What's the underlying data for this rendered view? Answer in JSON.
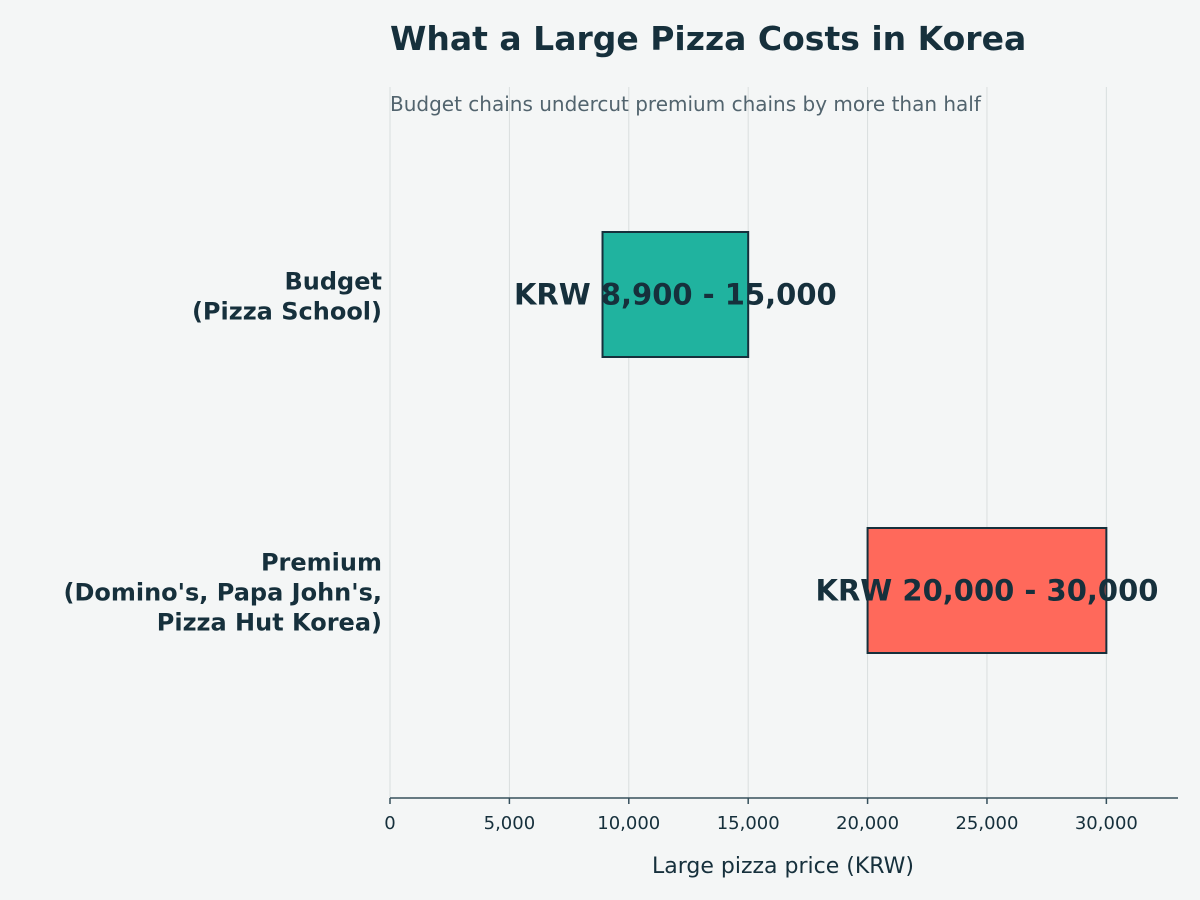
{
  "chart_data": {
    "type": "bar",
    "orientation": "horizontal",
    "subtype": "range",
    "title": "What a Large Pizza Costs in Korea",
    "subtitle": "Budget chains undercut premium chains by more than half",
    "xlabel": "Large pizza price (KRW)",
    "ylabel": "",
    "xlim": [
      0,
      33000
    ],
    "x_ticks": [
      0,
      5000,
      10000,
      15000,
      20000,
      25000,
      30000
    ],
    "x_tick_labels": [
      "0",
      "5,000",
      "10,000",
      "15,000",
      "20,000",
      "25,000",
      "30,000"
    ],
    "grid": "vertical",
    "legend": "none",
    "categories": [
      [
        "Budget",
        "(Pizza School)"
      ],
      [
        "Premium",
        "(Domino's, Papa John's,",
        "Pizza Hut Korea)"
      ]
    ],
    "ranges": [
      {
        "low": 8900,
        "high": 15000,
        "label": "KRW 8,900 - 15,000",
        "color": "#20b39f"
      },
      {
        "low": 20000,
        "high": 30000,
        "label": "KRW 20,000 - 30,000",
        "color": "#ff695b"
      }
    ],
    "colors": {
      "background": "#f4f6f6",
      "text": "#16303c",
      "subtitle": "#52646e",
      "grid": "#d9dede",
      "axis": "#36505c",
      "bar_edge": "#16303c"
    }
  }
}
